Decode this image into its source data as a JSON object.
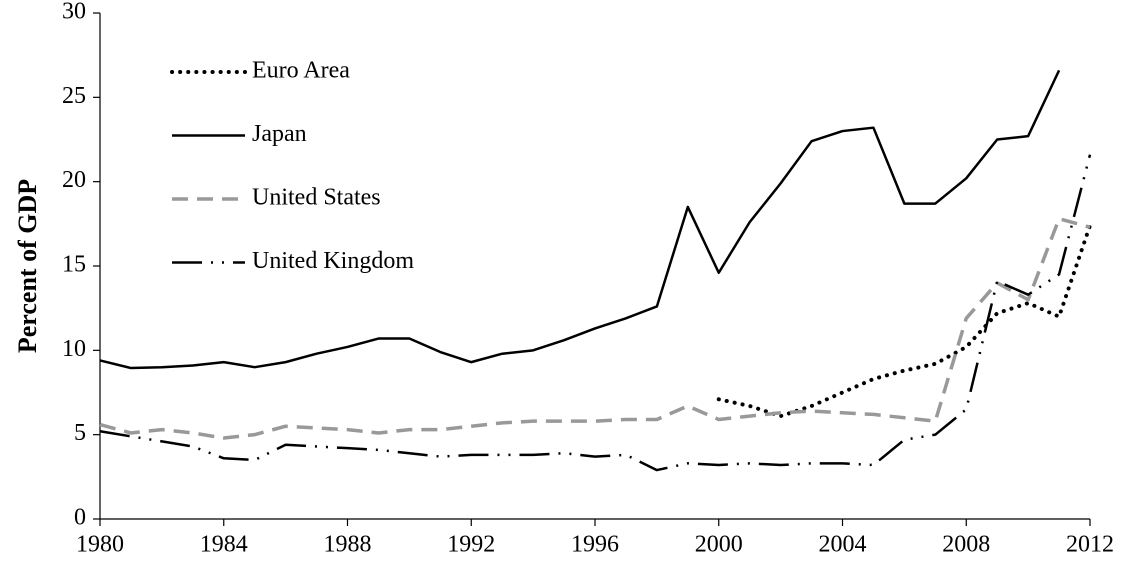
{
  "chart_data": {
    "type": "line",
    "y_label": "Percent of GDP",
    "x": [
      1980,
      1981,
      1982,
      1983,
      1984,
      1985,
      1986,
      1987,
      1988,
      1989,
      1990,
      1991,
      1992,
      1993,
      1994,
      1995,
      1996,
      1997,
      1998,
      1999,
      2000,
      2001,
      2002,
      2003,
      2004,
      2005,
      2006,
      2007,
      2008,
      2009,
      2010,
      2011,
      2012
    ],
    "series": [
      {
        "name": "Euro Area",
        "color": "#000000",
        "values": [
          null,
          null,
          null,
          null,
          null,
          null,
          null,
          null,
          null,
          null,
          null,
          null,
          null,
          null,
          null,
          null,
          null,
          null,
          null,
          null,
          7.1,
          6.7,
          6.1,
          6.7,
          7.5,
          8.3,
          8.8,
          9.2,
          10.2,
          12.2,
          12.8,
          12.0,
          17.4
        ]
      },
      {
        "name": "Japan",
        "color": "#000000",
        "values": [
          9.4,
          8.95,
          9.0,
          9.1,
          9.3,
          9.0,
          9.3,
          9.8,
          10.2,
          10.7,
          10.7,
          9.9,
          9.3,
          9.8,
          10.0,
          10.6,
          11.3,
          11.9,
          12.6,
          18.5,
          14.6,
          17.6,
          19.9,
          22.4,
          23.0,
          23.2,
          18.7,
          18.7,
          20.2,
          22.5,
          22.7,
          26.6,
          null
        ]
      },
      {
        "name": "United States",
        "color": "#999999",
        "values": [
          5.6,
          5.1,
          5.3,
          5.1,
          4.8,
          5.0,
          5.5,
          5.4,
          5.3,
          5.1,
          5.3,
          5.3,
          5.5,
          5.7,
          5.8,
          5.8,
          5.8,
          5.9,
          5.9,
          6.7,
          5.9,
          6.1,
          6.3,
          6.4,
          6.3,
          6.2,
          6.0,
          5.8,
          11.9,
          14.0,
          13.0,
          17.8,
          17.3
        ]
      },
      {
        "name": "United Kingdom",
        "color": "#000000",
        "values": [
          5.2,
          4.9,
          4.6,
          4.3,
          3.6,
          3.5,
          4.4,
          4.3,
          4.2,
          4.1,
          3.9,
          3.7,
          3.8,
          3.8,
          3.8,
          3.9,
          3.7,
          3.8,
          2.9,
          3.3,
          3.2,
          3.3,
          3.2,
          3.3,
          3.3,
          3.2,
          4.7,
          5.0,
          6.5,
          14.1,
          13.3,
          14.5,
          21.6
        ]
      }
    ],
    "xlim": [
      1980,
      2012
    ],
    "xticks": [
      1980,
      1984,
      1988,
      1992,
      1996,
      2000,
      2004,
      2008,
      2012
    ],
    "ylim": [
      0,
      30
    ],
    "yticks": [
      0,
      5,
      10,
      15,
      20,
      25,
      30
    ],
    "legend": "upper left"
  }
}
